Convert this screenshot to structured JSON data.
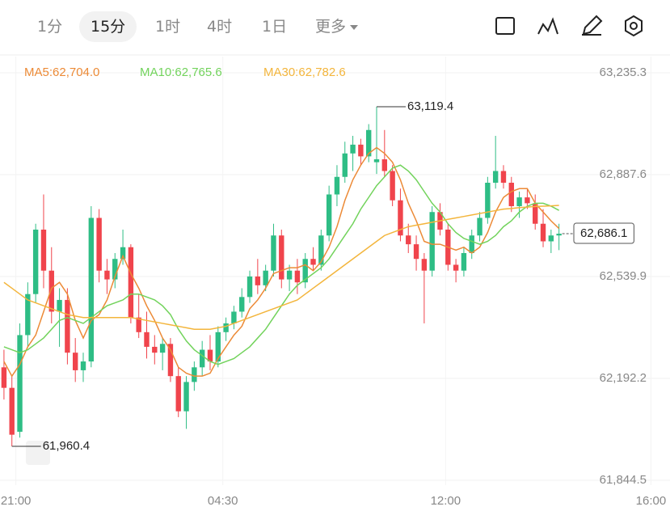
{
  "toolbar": {
    "tabs": [
      "1分",
      "15分",
      "1时",
      "4时",
      "1日",
      "更多"
    ],
    "selected": 1
  },
  "chart_data": {
    "type": "candlestick",
    "up_color": "#2ebd85",
    "down_color": "#f0444c",
    "x": [
      0,
      1,
      2,
      3,
      4,
      5,
      6,
      7,
      8,
      9,
      10,
      11,
      12,
      13,
      14,
      15,
      16,
      17,
      18,
      19,
      20,
      21,
      22,
      23,
      24,
      25,
      26,
      27,
      28,
      29,
      30,
      31,
      32,
      33,
      34,
      35,
      36,
      37,
      38,
      39,
      40,
      41,
      42,
      43,
      44,
      45,
      46,
      47,
      48,
      49,
      50,
      51,
      52,
      53,
      54,
      55,
      56,
      57,
      58,
      59,
      60,
      61,
      62,
      63,
      64,
      65,
      66,
      67,
      68,
      69,
      70
    ],
    "open": [
      62230,
      62160,
      62010,
      62340,
      62480,
      62700,
      62560,
      62420,
      62460,
      62280,
      62220,
      62250,
      62740,
      62560,
      62530,
      62600,
      62640,
      62400,
      62350,
      62300,
      62280,
      62310,
      62200,
      62080,
      62180,
      62230,
      62290,
      62250,
      62350,
      62380,
      62420,
      62470,
      62540,
      62510,
      62560,
      62680,
      62530,
      62560,
      62520,
      62600,
      62580,
      62680,
      62820,
      62880,
      62960,
      62990,
      62950,
      62930,
      62940,
      62900,
      62800,
      62680,
      62650,
      62600,
      62560,
      62760,
      62700,
      62580,
      62560,
      62620,
      62680,
      62740,
      62860,
      62900,
      62860,
      62780,
      62810,
      62790,
      62720,
      62660,
      62680
    ],
    "high": [
      62290,
      62200,
      62380,
      62520,
      62720,
      62820,
      62640,
      62500,
      62500,
      62330,
      62280,
      62780,
      62770,
      62600,
      62620,
      62700,
      62650,
      62480,
      62420,
      62340,
      62330,
      62330,
      62230,
      62200,
      62250,
      62320,
      62340,
      62370,
      62400,
      62440,
      62500,
      62560,
      62600,
      62580,
      62720,
      62700,
      62580,
      62600,
      62620,
      62640,
      62700,
      62850,
      62920,
      63000,
      63020,
      63010,
      63060,
      63119.4,
      63040,
      62920,
      62840,
      62720,
      62680,
      62620,
      62780,
      62790,
      62720,
      62600,
      62640,
      62700,
      62760,
      62880,
      63020,
      62920,
      62880,
      62830,
      62840,
      62820,
      62770,
      62700,
      62720
    ],
    "low": [
      62120,
      61960.4,
      61990,
      62300,
      62450,
      62500,
      62380,
      62300,
      62240,
      62180,
      62180,
      62230,
      62520,
      62480,
      62500,
      62580,
      62380,
      62330,
      62260,
      62240,
      62220,
      62180,
      62060,
      62020,
      62150,
      62200,
      62220,
      62230,
      62320,
      62360,
      62400,
      62450,
      62480,
      62490,
      62540,
      62500,
      62490,
      62480,
      62500,
      62560,
      62560,
      62660,
      62780,
      62860,
      62900,
      62920,
      62930,
      62890,
      62880,
      62780,
      62660,
      62620,
      62560,
      62380,
      62540,
      62680,
      62560,
      62520,
      62540,
      62600,
      62660,
      62720,
      62840,
      62840,
      62760,
      62740,
      62770,
      62700,
      62640,
      62620,
      62630
    ],
    "close": [
      62160,
      62000,
      62340,
      62480,
      62700,
      62560,
      62420,
      62460,
      62280,
      62220,
      62250,
      62740,
      62560,
      62530,
      62600,
      62640,
      62400,
      62350,
      62300,
      62280,
      62310,
      62200,
      62080,
      62180,
      62230,
      62290,
      62250,
      62350,
      62380,
      62420,
      62470,
      62540,
      62510,
      62560,
      62680,
      62530,
      62560,
      62520,
      62600,
      62580,
      62680,
      62820,
      62880,
      62960,
      62990,
      62950,
      63040,
      62940,
      62900,
      62800,
      62680,
      62650,
      62600,
      62560,
      62760,
      62700,
      62580,
      62560,
      62620,
      62680,
      62740,
      62860,
      62900,
      62860,
      62780,
      62810,
      62790,
      62720,
      62660,
      62680,
      62686.1
    ],
    "series": [
      {
        "name": "MA5:62,704.0",
        "color": "#ec8a36",
        "values": [
          62250,
          62200,
          62240,
          62300,
          62340,
          62420,
          62500,
          62520,
          62480,
          62390,
          62330,
          62390,
          62410,
          62460,
          62540,
          62610,
          62550,
          62500,
          62440,
          62390,
          62330,
          62290,
          62230,
          62210,
          62200,
          62200,
          62210,
          62260,
          62300,
          62340,
          62370,
          62430,
          62460,
          62500,
          62550,
          62560,
          62570,
          62570,
          62580,
          62560,
          62590,
          62640,
          62710,
          62800,
          62870,
          62920,
          62960,
          62980,
          62960,
          62930,
          62870,
          62790,
          62730,
          62660,
          62650,
          62650,
          62640,
          62630,
          62640,
          62620,
          62640,
          62690,
          62760,
          62810,
          62830,
          62840,
          62840,
          62790,
          62760,
          62730,
          62704.0
        ]
      },
      {
        "name": "MA10:62,765.6",
        "color": "#72d35c",
        "values": [
          62300,
          62290,
          62280,
          62290,
          62310,
          62330,
          62360,
          62390,
          62400,
          62390,
          62380,
          62400,
          62420,
          62440,
          62450,
          62460,
          62480,
          62480,
          62470,
          62460,
          62440,
          62410,
          62360,
          62320,
          62290,
          62270,
          62250,
          62240,
          62250,
          62260,
          62280,
          62300,
          62330,
          62360,
          62400,
          62440,
          62480,
          62510,
          62530,
          62550,
          62570,
          62600,
          62640,
          62680,
          62720,
          62770,
          62810,
          62850,
          62880,
          62910,
          62920,
          62900,
          62870,
          62830,
          62790,
          62760,
          62720,
          62690,
          62670,
          62660,
          62650,
          62660,
          62680,
          62710,
          62730,
          62760,
          62780,
          62790,
          62790,
          62780,
          62765.6
        ]
      },
      {
        "name": "MA30:62,782.6",
        "color": "#f3b53c",
        "values": [
          62520,
          62500,
          62480,
          62460,
          62450,
          62440,
          62430,
          62420,
          62410,
          62405,
          62400,
          62400,
          62400,
          62400,
          62400,
          62400,
          62400,
          62395,
          62390,
          62385,
          62380,
          62375,
          62370,
          62365,
          62360,
          62360,
          62360,
          62365,
          62370,
          62380,
          62390,
          62400,
          62410,
          62420,
          62430,
          62440,
          62450,
          62460,
          62480,
          62500,
          62520,
          62540,
          62560,
          62580,
          62600,
          62620,
          62640,
          62660,
          62680,
          62690,
          62700,
          62710,
          62715,
          62720,
          62725,
          62730,
          62735,
          62740,
          62745,
          62750,
          62755,
          62760,
          62765,
          62770,
          62772,
          62775,
          62777,
          62779,
          62780,
          62781,
          62782.6
        ]
      }
    ],
    "xlim": [
      -0.5,
      84
    ],
    "xticks": [
      {
        "value": 1.5,
        "label": "21:00"
      },
      {
        "value": 27.6,
        "label": "04:30"
      },
      {
        "value": 55.7,
        "label": "12:00"
      },
      {
        "value": 81.6,
        "label": "16:00"
      }
    ],
    "ylim": [
      61844.5,
      63235.3
    ],
    "yticks": [
      {
        "value": 61844.5,
        "label": "61,844.5"
      },
      {
        "value": 62192.2,
        "label": "62,192.2"
      },
      {
        "value": 62539.9,
        "label": "62,539.9"
      },
      {
        "value": 62887.6,
        "label": "62,887.6"
      },
      {
        "value": 63235.3,
        "label": "63,235.3"
      }
    ],
    "grid": true,
    "annotations": [
      {
        "label": "63,119.4",
        "value": 63119.4,
        "x": 47,
        "kind": "high"
      },
      {
        "label": "61,960.4",
        "value": 61960.4,
        "x": 1,
        "kind": "low"
      },
      {
        "label": "62,686.1",
        "value": 62686.1,
        "x": 70,
        "kind": "last"
      }
    ]
  }
}
